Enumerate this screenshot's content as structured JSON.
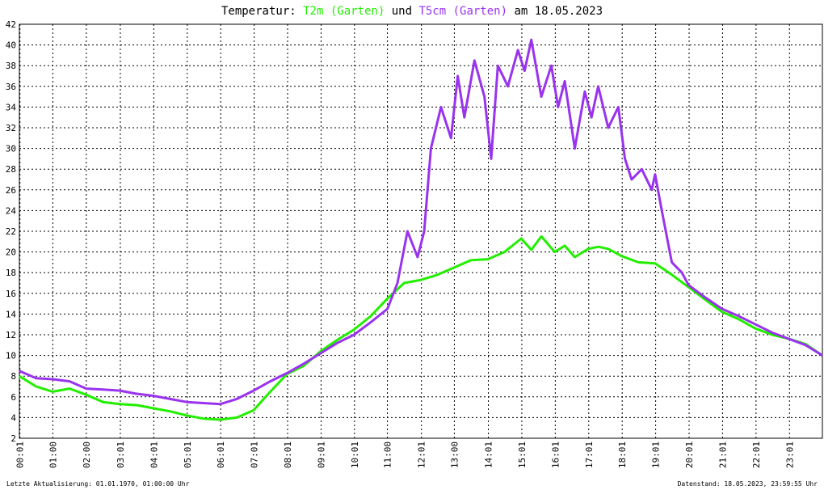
{
  "chart_data": {
    "type": "line",
    "title_parts": {
      "prefix": "Temperatur: ",
      "series1": "T2m (Garten)",
      "middle": " und ",
      "series2": "T5cm (Garten)",
      "suffix": " am 18.05.2023"
    },
    "xlabel": "",
    "ylabel": "",
    "xlim": [
      0,
      24
    ],
    "ylim": [
      2,
      42
    ],
    "yticks": [
      2,
      4,
      6,
      8,
      10,
      12,
      14,
      16,
      18,
      20,
      22,
      24,
      26,
      28,
      30,
      32,
      34,
      36,
      38,
      40,
      42
    ],
    "xticks": [
      {
        "x": 0.0167,
        "label": "00:01"
      },
      {
        "x": 1,
        "label": "01:00"
      },
      {
        "x": 2,
        "label": "02:00"
      },
      {
        "x": 3.0167,
        "label": "03:01"
      },
      {
        "x": 4.0167,
        "label": "04:01"
      },
      {
        "x": 5.0167,
        "label": "05:01"
      },
      {
        "x": 6.0167,
        "label": "06:01"
      },
      {
        "x": 7.0167,
        "label": "07:01"
      },
      {
        "x": 8.0167,
        "label": "08:01"
      },
      {
        "x": 9.0167,
        "label": "09:01"
      },
      {
        "x": 10.0167,
        "label": "10:01"
      },
      {
        "x": 11,
        "label": "11:00"
      },
      {
        "x": 12.0167,
        "label": "12:01"
      },
      {
        "x": 13,
        "label": "13:00"
      },
      {
        "x": 14.0167,
        "label": "14:01"
      },
      {
        "x": 15.0167,
        "label": "15:01"
      },
      {
        "x": 16.0167,
        "label": "16:01"
      },
      {
        "x": 17.0167,
        "label": "17:01"
      },
      {
        "x": 18.0167,
        "label": "18:01"
      },
      {
        "x": 19.0167,
        "label": "19:01"
      },
      {
        "x": 20.0167,
        "label": "20:01"
      },
      {
        "x": 21.0167,
        "label": "21:01"
      },
      {
        "x": 22.0167,
        "label": "22:01"
      },
      {
        "x": 23.0167,
        "label": "23:01"
      }
    ],
    "grid": true,
    "series": [
      {
        "name": "T2m (Garten)",
        "color": "#22ee00",
        "x": [
          0,
          0.5,
          1,
          1.5,
          2,
          2.5,
          3,
          3.5,
          4,
          4.5,
          5,
          5.5,
          6,
          6.5,
          7,
          7.5,
          8,
          8.5,
          9,
          9.5,
          10,
          10.5,
          11,
          11.5,
          12,
          12.5,
          13,
          13.5,
          14,
          14.5,
          15,
          15.3,
          15.6,
          16,
          16.3,
          16.6,
          17,
          17.3,
          17.6,
          18,
          18.5,
          19,
          19.5,
          20,
          20.5,
          21,
          21.5,
          22,
          22.5,
          23,
          23.5,
          24
        ],
        "y": [
          8.0,
          7.0,
          6.5,
          6.8,
          6.2,
          5.5,
          5.3,
          5.2,
          4.9,
          4.6,
          4.2,
          3.9,
          3.8,
          4.0,
          4.7,
          6.5,
          8.2,
          9.0,
          10.4,
          11.5,
          12.5,
          13.8,
          15.5,
          17.0,
          17.3,
          17.8,
          18.5,
          19.2,
          19.3,
          20.0,
          21.3,
          20.2,
          21.5,
          20.0,
          20.6,
          19.5,
          20.3,
          20.5,
          20.3,
          19.6,
          19.0,
          18.9,
          17.8,
          16.6,
          15.4,
          14.2,
          13.5,
          12.6,
          12.0,
          11.6,
          11.1,
          10.0
        ]
      },
      {
        "name": "T5cm (Garten)",
        "color": "#9933ee",
        "x": [
          0,
          0.5,
          1,
          1.5,
          2,
          2.5,
          3,
          3.5,
          4,
          4.5,
          5,
          5.5,
          6,
          6.5,
          7,
          7.5,
          8,
          8.5,
          9,
          9.5,
          10,
          10.5,
          11,
          11.3,
          11.6,
          11.9,
          12.1,
          12.3,
          12.6,
          12.9,
          13.1,
          13.3,
          13.6,
          13.9,
          14.1,
          14.3,
          14.6,
          14.9,
          15.1,
          15.3,
          15.6,
          15.9,
          16.1,
          16.3,
          16.6,
          16.9,
          17.1,
          17.3,
          17.6,
          17.9,
          18.1,
          18.3,
          18.6,
          18.9,
          19.0,
          19.2,
          19.5,
          19.8,
          20.0,
          20.5,
          21,
          21.5,
          22,
          22.5,
          23,
          23.5,
          24
        ],
        "y": [
          8.5,
          7.8,
          7.7,
          7.5,
          6.8,
          6.7,
          6.6,
          6.3,
          6.1,
          5.8,
          5.5,
          5.4,
          5.3,
          5.8,
          6.6,
          7.5,
          8.3,
          9.2,
          10.2,
          11.2,
          12.0,
          13.2,
          14.5,
          17.0,
          22.0,
          19.5,
          22.0,
          30.0,
          34.0,
          31.0,
          37.0,
          33.0,
          38.5,
          35.0,
          29.0,
          38.0,
          36.0,
          39.5,
          37.5,
          40.5,
          35.0,
          38.0,
          34.0,
          36.5,
          30.0,
          35.5,
          33.0,
          36.0,
          32.0,
          34.0,
          29.0,
          27.0,
          28.0,
          26.0,
          27.5,
          24.0,
          19.0,
          18.0,
          16.8,
          15.6,
          14.5,
          13.8,
          13.0,
          12.2,
          11.6,
          11.0,
          10.0
        ]
      }
    ]
  },
  "footer": {
    "left": "Letzte Aktualisierung: 01.01.1970, 01:00:00 Uhr",
    "right": "Datenstand: 18.05.2023, 23:59:55 Uhr"
  }
}
